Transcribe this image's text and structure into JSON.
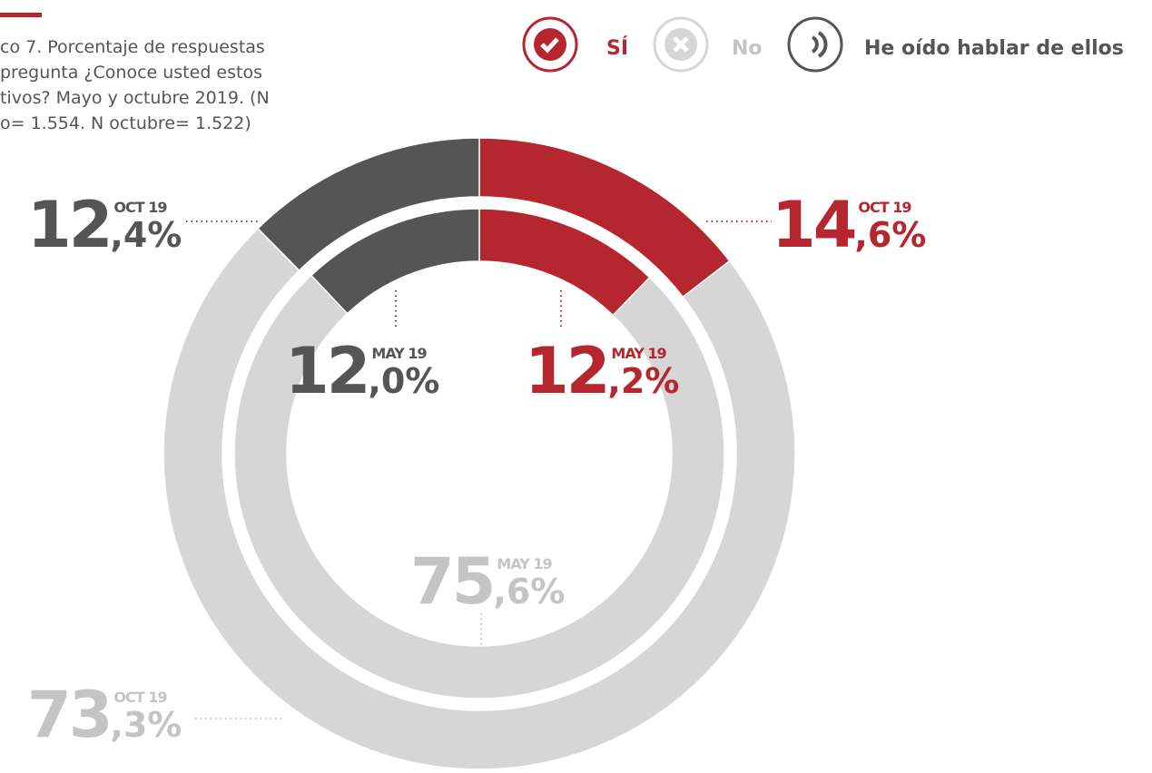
{
  "chart_data": {
    "type": "donut",
    "title_lines": [
      "co 7. Porcentaje de respuestas",
      "pregunta ¿Conoce usted estos",
      "tivos? Mayo y octubre 2019. (N",
      "o= 1.554. N octubre= 1.522)"
    ],
    "categories": [
      "SÍ",
      "No",
      "He oído hablar de ellos"
    ],
    "colors": [
      "#b5262e",
      "#d6d6d6",
      "#555555"
    ],
    "label_colors": [
      "#b5262e",
      "#c4c4c4",
      "#555555"
    ],
    "rings": [
      {
        "name": "OCT 19",
        "values": [
          14.6,
          73.3,
          12.4
        ],
        "value_labels": [
          "14,6%",
          "73,3%",
          "12,4%"
        ]
      },
      {
        "name": "MAY 19",
        "values": [
          12.2,
          75.6,
          12.0
        ],
        "value_labels": [
          "12,2%",
          "75,6%",
          "12,0%"
        ]
      }
    ]
  }
}
